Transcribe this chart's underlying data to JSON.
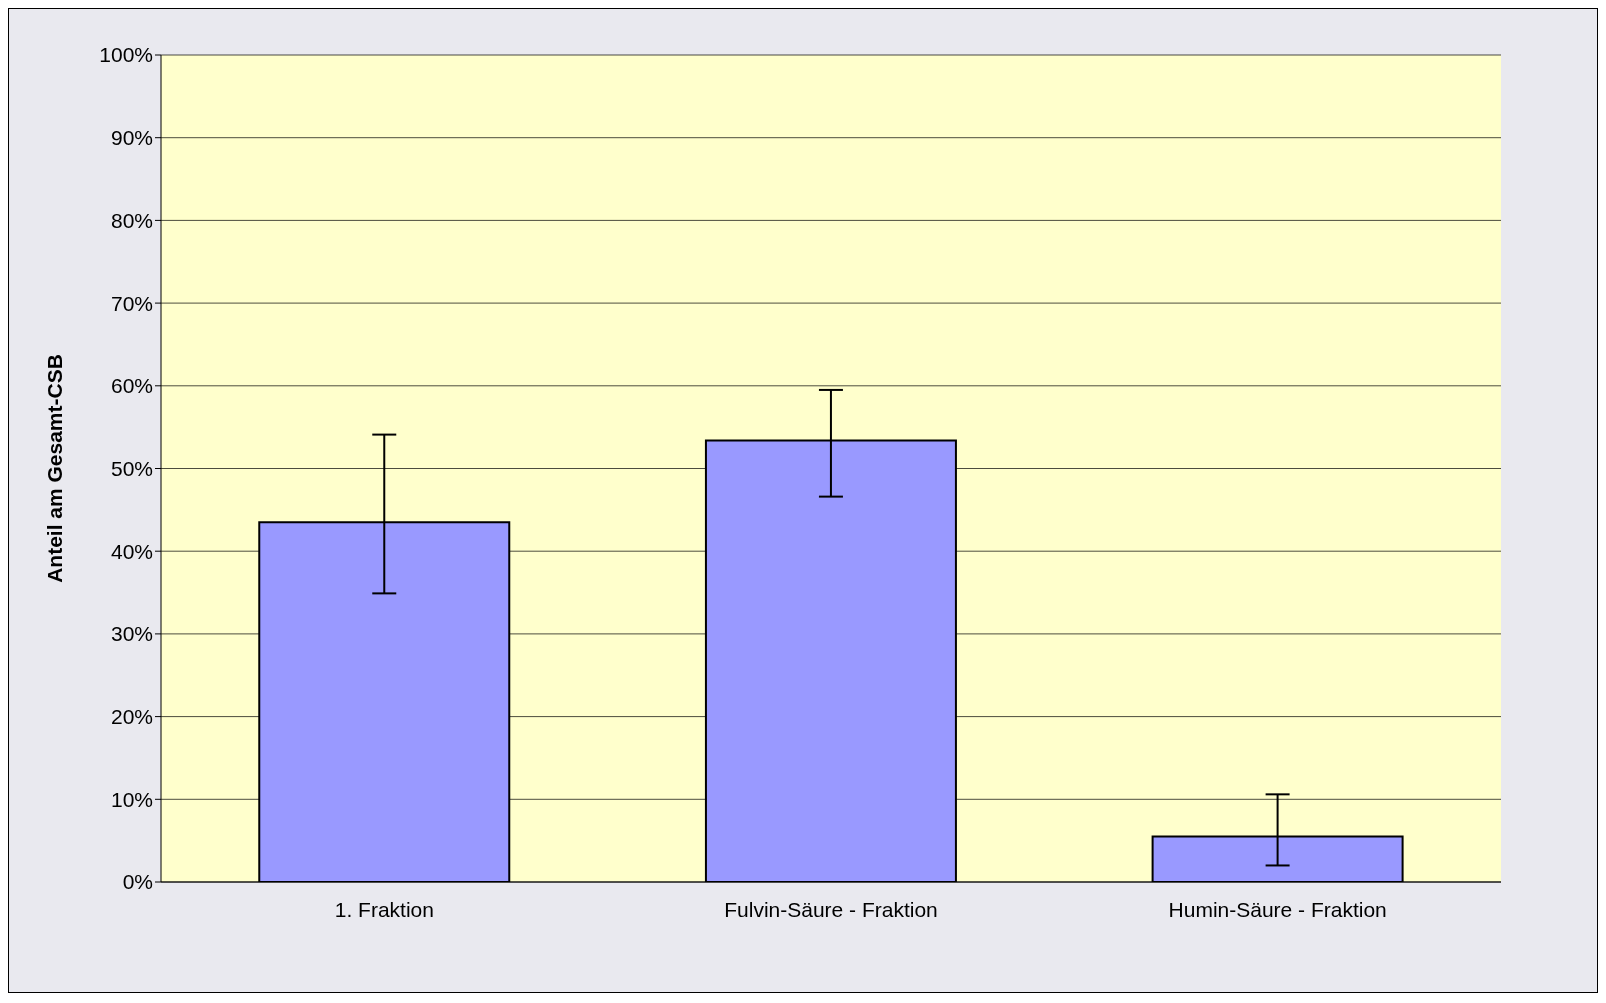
{
  "chart_data": {
    "type": "bar",
    "ylabel": "Anteil am Gesamt-CSB",
    "categories": [
      "1. Fraktion",
      "Fulvin-Säure - Fraktion",
      "Humin-Säure - Fraktion"
    ],
    "values": [
      43.5,
      53.4,
      5.5
    ],
    "errors": [
      [
        34.9,
        54.1
      ],
      [
        46.6,
        59.5
      ],
      [
        2.0,
        10.6
      ]
    ],
    "color": "#9999ff",
    "ylim": [
      0,
      100
    ],
    "yticks": [
      {
        "value": 0,
        "label": "0%"
      },
      {
        "value": 10,
        "label": "10%"
      },
      {
        "value": 20,
        "label": "20%"
      },
      {
        "value": 30,
        "label": "30%"
      },
      {
        "value": 40,
        "label": "40%"
      },
      {
        "value": 50,
        "label": "50%"
      },
      {
        "value": 60,
        "label": "60%"
      },
      {
        "value": 70,
        "label": "70%"
      },
      {
        "value": 80,
        "label": "80%"
      },
      {
        "value": 90,
        "label": "90%"
      },
      {
        "value": 100,
        "label": "100%"
      }
    ],
    "grid": "y",
    "legend": false
  }
}
